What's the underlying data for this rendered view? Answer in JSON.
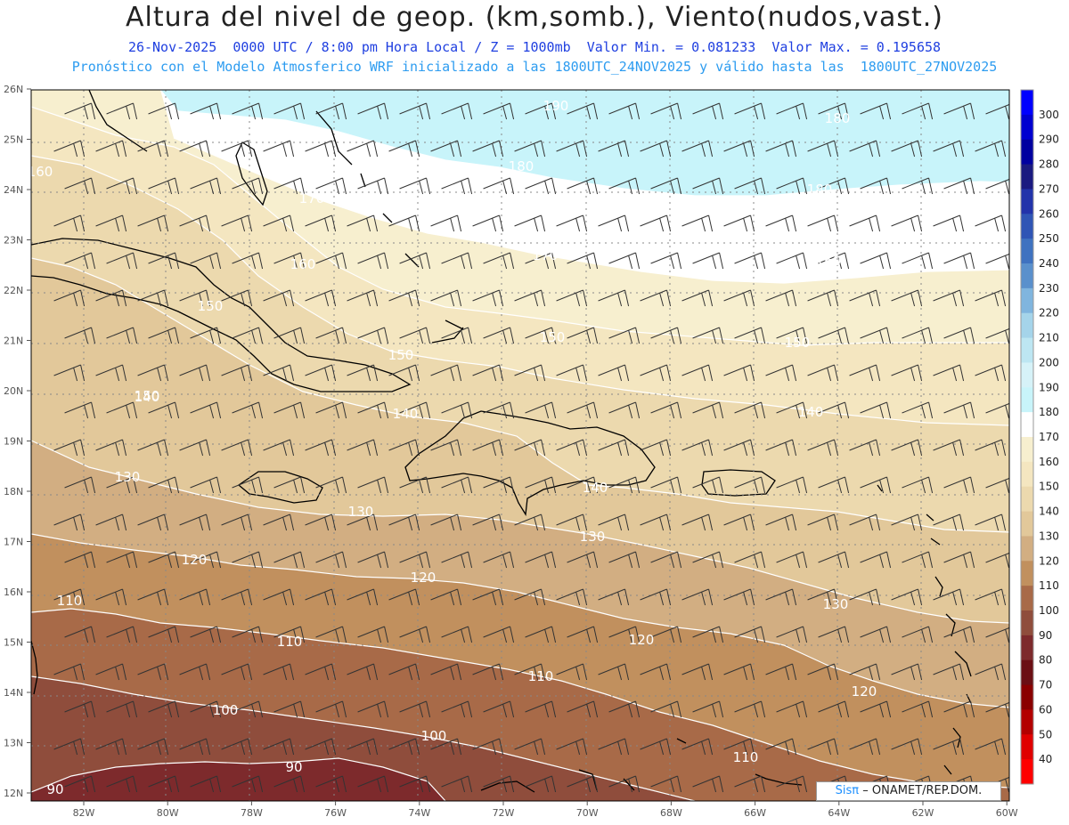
{
  "header": {
    "title": "Altura del nivel de geop. (km,somb.), Viento(nudos,vast.)",
    "line1": "26-Nov-2025  0000 UTC / 8:00 pm Hora Local / Z = 1000mb  Valor Min. = 0.081233  Valor Max. = 0.195658",
    "line2": "Pronóstico con el Modelo Atmosferico WRF inicializado a las 1800UTC_24NOV2025 y válido hasta las  1800UTC_27NOV2025"
  },
  "axes": {
    "lat_labels": [
      "26N",
      "25N",
      "24N",
      "23N",
      "22N",
      "21N",
      "20N",
      "19N",
      "18N",
      "17N",
      "16N",
      "15N",
      "14N",
      "13N",
      "12N"
    ],
    "lon_labels": [
      "82W",
      "80W",
      "78W",
      "76W",
      "74W",
      "72W",
      "70W",
      "68W",
      "66W",
      "64W",
      "62W",
      "60W"
    ]
  },
  "colorbar": {
    "levels": [
      "300",
      "290",
      "280",
      "270",
      "260",
      "250",
      "240",
      "230",
      "220",
      "210",
      "200",
      "190",
      "180",
      "170",
      "160",
      "150",
      "140",
      "130",
      "120",
      "110",
      "100",
      "90",
      "80",
      "70",
      "60",
      "50",
      "40"
    ],
    "colors": [
      "#0000ff",
      "#0000d0",
      "#0000a0",
      "#1a1a80",
      "#2233aa",
      "#2f55b5",
      "#3f72c0",
      "#5a90cc",
      "#80b5de",
      "#a5d4ea",
      "#bde6f2",
      "#d6f2f8",
      "#c8f4fa",
      "#ffffff",
      "#f7efcf",
      "#f4e6c0",
      "#ecd9ae",
      "#e2c89a",
      "#d2ae82",
      "#c1905e",
      "#a86a48",
      "#8f4d3c",
      "#7d2a2c",
      "#6b0f14",
      "#8a0000",
      "#b30000",
      "#e00000",
      "#ff0000"
    ]
  },
  "map": {
    "shading_colors": {
      "c200": "#c8f4fa",
      "c170": "#ffffff",
      "c160": "#f7efcf",
      "c150": "#f4e6c0",
      "c140": "#ecd9ae",
      "c130": "#e2c89a",
      "c120": "#d2ae82",
      "c110": "#c1905e",
      "c100": "#a86a48",
      "c90": "#8f4d3c",
      "c80": "#7d2a2c"
    },
    "contour_labels": [
      "190",
      "180",
      "180",
      "180",
      "170",
      "170",
      "160",
      "160",
      "160",
      "150",
      "150",
      "150",
      "150",
      "150",
      "140",
      "140",
      "140",
      "130",
      "130",
      "130",
      "120",
      "120",
      "120",
      "120",
      "110",
      "110",
      "110",
      "110",
      "100",
      "100",
      "90",
      "90",
      "130",
      "140"
    ]
  },
  "credit": {
    "sis": "Sisπ",
    "text": "– ONAMET/REP.DOM."
  }
}
